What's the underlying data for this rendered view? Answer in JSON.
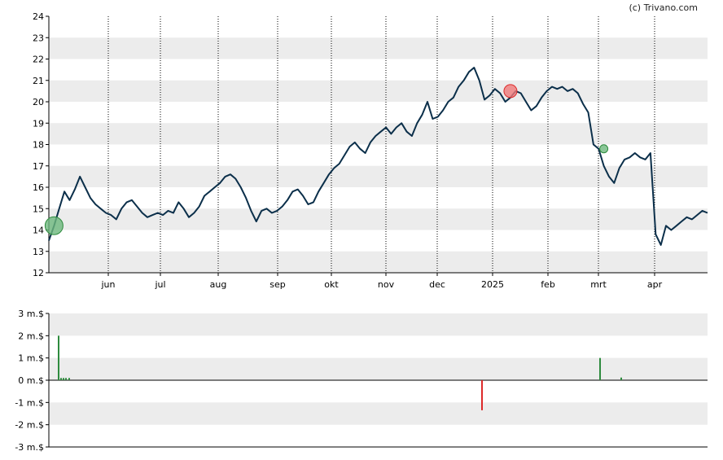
{
  "credit": "(c) Trivano.com",
  "colors": {
    "band": "#ececec",
    "line": "#0b2f4a",
    "buy": "#2e8b3e",
    "sell": "#dd2a2a",
    "buy_marker": "#6db87d",
    "sell_marker": "#f07a7a"
  },
  "chart_data": [
    {
      "type": "line",
      "title": "",
      "xlabel": "",
      "ylabel": "",
      "x_tick_labels": [
        "jun",
        "jul",
        "aug",
        "sep",
        "okt",
        "nov",
        "dec",
        "2025",
        "feb",
        "mrt",
        "apr"
      ],
      "y_tick_labels": [
        "24",
        "23",
        "22",
        "21",
        "20",
        "19",
        "18",
        "17",
        "16",
        "15",
        "14",
        "13",
        "12"
      ],
      "ylim": [
        12,
        24
      ],
      "grid": "alternating horizontal bands, dotted vertical month lines",
      "series": [
        {
          "values": [
            13.5,
            14.2,
            15.0,
            15.8,
            15.4,
            15.9,
            16.5,
            16.0,
            15.5,
            15.2,
            15.0,
            14.8,
            14.7,
            14.5,
            15.0,
            15.3,
            15.4,
            15.1,
            14.8,
            14.6,
            14.7,
            14.8,
            14.7,
            14.9,
            14.8,
            15.3,
            15.0,
            14.6,
            14.8,
            15.1,
            15.6,
            15.8,
            16.0,
            16.2,
            16.5,
            16.6,
            16.4,
            16.0,
            15.5,
            14.9,
            14.4,
            14.9,
            15.0,
            14.8,
            14.9,
            15.1,
            15.4,
            15.8,
            15.9,
            15.6,
            15.2,
            15.3,
            15.8,
            16.2,
            16.6,
            16.9,
            17.1,
            17.5,
            17.9,
            18.1,
            17.8,
            17.6,
            18.1,
            18.4,
            18.6,
            18.8,
            18.5,
            18.8,
            19.0,
            18.6,
            18.4,
            19.0,
            19.4,
            20.0,
            19.2,
            19.3,
            19.6,
            20.0,
            20.2,
            20.7,
            21.0,
            21.4,
            21.6,
            21.0,
            20.1,
            20.3,
            20.6,
            20.4,
            20.0,
            20.2,
            20.5,
            20.4,
            20.0,
            19.6,
            19.8,
            20.2,
            20.5,
            20.7,
            20.6,
            20.7,
            20.5,
            20.6,
            20.4,
            19.9,
            19.5,
            18.0,
            17.8,
            17.0,
            16.5,
            16.2,
            16.9,
            17.3,
            17.4,
            17.6,
            17.4,
            17.3,
            17.6,
            13.8,
            13.3,
            14.2,
            14.0,
            14.2,
            14.4,
            14.6,
            14.5,
            14.7,
            14.9,
            14.8
          ]
        }
      ],
      "markers": [
        {
          "type": "buy",
          "value": 14.2
        },
        {
          "type": "sell",
          "value": 20.5
        },
        {
          "type": "buy",
          "value": 17.8
        }
      ]
    },
    {
      "type": "bar",
      "title": "",
      "xlabel": "",
      "ylabel": "",
      "y_tick_labels": [
        "3 m.$",
        "2 m.$",
        "1 m.$",
        "0 m.$",
        "-1 m.$",
        "-2 m.$",
        "-3 m.$"
      ],
      "ylim": [
        -3,
        3
      ],
      "unit": "m.$",
      "grid": "alternating horizontal bands",
      "series": [
        {
          "values": [
            2.0,
            0.1,
            0.1,
            0.1,
            0.1,
            -1.35,
            1.0,
            0.12
          ]
        }
      ]
    }
  ]
}
